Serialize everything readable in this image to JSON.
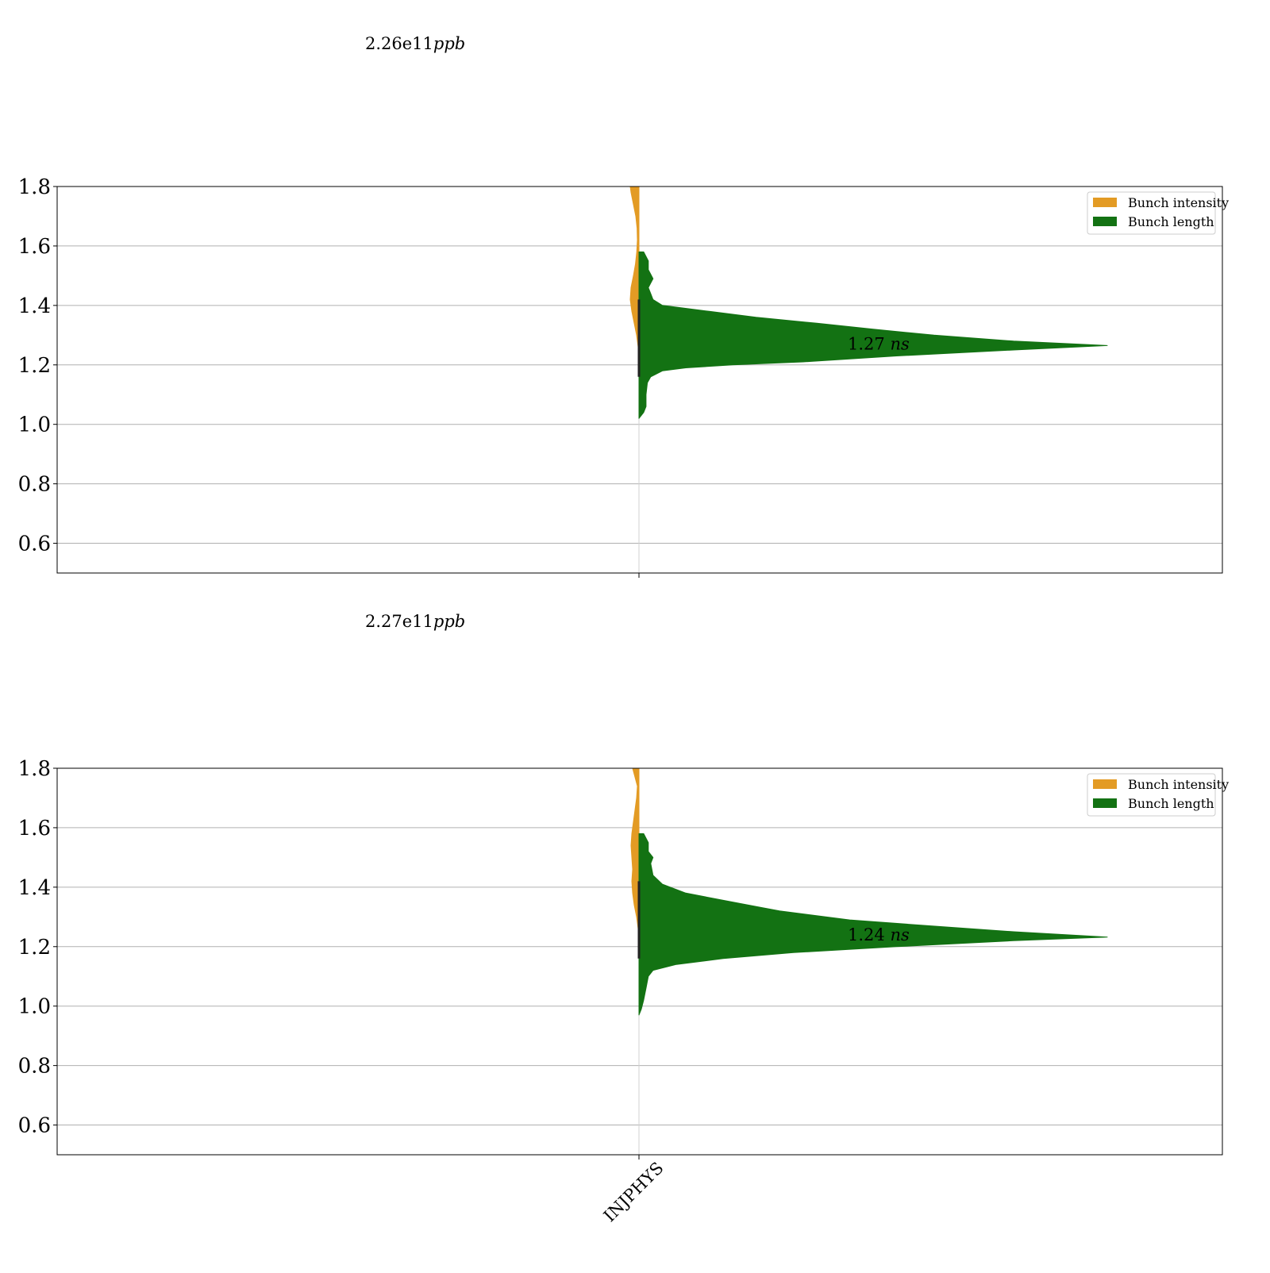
{
  "chart_data": [
    {
      "type": "violin",
      "panel": "top",
      "annotation_above": {
        "value": "2.26e11",
        "unit": "ppb"
      },
      "ylim": [
        0.5,
        1.8
      ],
      "yticks": [
        "0.6",
        "0.8",
        "1.0",
        "1.2",
        "1.4",
        "1.6",
        "1.8"
      ],
      "grid": true,
      "categories": [],
      "legend": {
        "position": "top-right",
        "entries": [
          {
            "label": "Bunch intensity",
            "color": "#e39b24"
          },
          {
            "label": "Bunch length",
            "color": "#137213"
          }
        ]
      },
      "median_label": {
        "value": "1.27",
        "unit": "ns",
        "y": 1.27
      },
      "series": [
        {
          "name": "Bunch intensity",
          "side": "left",
          "color": "#e39b24",
          "profile": [
            [
              1.8,
              0.55
            ],
            [
              1.78,
              0.5
            ],
            [
              1.74,
              0.35
            ],
            [
              1.7,
              0.2
            ],
            [
              1.66,
              0.12
            ],
            [
              1.62,
              0.1
            ],
            [
              1.58,
              0.14
            ],
            [
              1.54,
              0.22
            ],
            [
              1.5,
              0.35
            ],
            [
              1.46,
              0.5
            ],
            [
              1.42,
              0.55
            ],
            [
              1.38,
              0.45
            ],
            [
              1.34,
              0.3
            ],
            [
              1.3,
              0.15
            ],
            [
              1.26,
              0.05
            ],
            [
              1.2,
              0.02
            ]
          ]
        },
        {
          "name": "Bunch length",
          "side": "right",
          "color": "#137213",
          "profile": [
            [
              1.58,
              0.01
            ],
            [
              1.55,
              0.02
            ],
            [
              1.52,
              0.02
            ],
            [
              1.49,
              0.03
            ],
            [
              1.46,
              0.02
            ],
            [
              1.44,
              0.025
            ],
            [
              1.42,
              0.03
            ],
            [
              1.4,
              0.05
            ],
            [
              1.38,
              0.15
            ],
            [
              1.36,
              0.25
            ],
            [
              1.34,
              0.38
            ],
            [
              1.32,
              0.5
            ],
            [
              1.3,
              0.63
            ],
            [
              1.28,
              0.8
            ],
            [
              1.265,
              1.0
            ],
            [
              1.25,
              0.8
            ],
            [
              1.23,
              0.55
            ],
            [
              1.21,
              0.35
            ],
            [
              1.2,
              0.2
            ],
            [
              1.19,
              0.1
            ],
            [
              1.18,
              0.05
            ],
            [
              1.16,
              0.025
            ],
            [
              1.14,
              0.018
            ],
            [
              1.1,
              0.015
            ],
            [
              1.06,
              0.015
            ],
            [
              1.04,
              0.01
            ],
            [
              1.02,
              0.0
            ]
          ]
        }
      ]
    },
    {
      "type": "violin",
      "panel": "bottom",
      "annotation_above": {
        "value": "2.27e11",
        "unit": "ppb"
      },
      "ylim": [
        0.5,
        1.8
      ],
      "yticks": [
        "0.6",
        "0.8",
        "1.0",
        "1.2",
        "1.4",
        "1.6",
        "1.8"
      ],
      "grid": true,
      "categories": [
        "INJPHYS"
      ],
      "legend": {
        "position": "top-right",
        "entries": [
          {
            "label": "Bunch intensity",
            "color": "#e39b24"
          },
          {
            "label": "Bunch length",
            "color": "#137213"
          }
        ]
      },
      "median_label": {
        "value": "1.24",
        "unit": "ns",
        "y": 1.24
      },
      "series": [
        {
          "name": "Bunch intensity",
          "side": "left",
          "color": "#e39b24",
          "profile": [
            [
              1.8,
              0.4
            ],
            [
              1.77,
              0.25
            ],
            [
              1.74,
              0.1
            ],
            [
              1.7,
              0.15
            ],
            [
              1.66,
              0.25
            ],
            [
              1.62,
              0.35
            ],
            [
              1.58,
              0.45
            ],
            [
              1.54,
              0.5
            ],
            [
              1.5,
              0.45
            ],
            [
              1.46,
              0.4
            ],
            [
              1.42,
              0.45
            ],
            [
              1.38,
              0.4
            ],
            [
              1.34,
              0.3
            ],
            [
              1.3,
              0.15
            ],
            [
              1.26,
              0.05
            ],
            [
              1.2,
              0.02
            ]
          ]
        },
        {
          "name": "Bunch length",
          "side": "right",
          "color": "#137213",
          "profile": [
            [
              1.58,
              0.01
            ],
            [
              1.55,
              0.02
            ],
            [
              1.52,
              0.02
            ],
            [
              1.5,
              0.03
            ],
            [
              1.48,
              0.025
            ],
            [
              1.44,
              0.03
            ],
            [
              1.41,
              0.05
            ],
            [
              1.38,
              0.1
            ],
            [
              1.35,
              0.2
            ],
            [
              1.32,
              0.3
            ],
            [
              1.29,
              0.45
            ],
            [
              1.27,
              0.62
            ],
            [
              1.25,
              0.8
            ],
            [
              1.232,
              1.0
            ],
            [
              1.22,
              0.8
            ],
            [
              1.2,
              0.55
            ],
            [
              1.18,
              0.33
            ],
            [
              1.16,
              0.18
            ],
            [
              1.14,
              0.08
            ],
            [
              1.12,
              0.03
            ],
            [
              1.1,
              0.02
            ],
            [
              1.06,
              0.015
            ],
            [
              1.02,
              0.01
            ],
            [
              0.99,
              0.005
            ],
            [
              0.97,
              0.0
            ]
          ]
        }
      ]
    }
  ]
}
